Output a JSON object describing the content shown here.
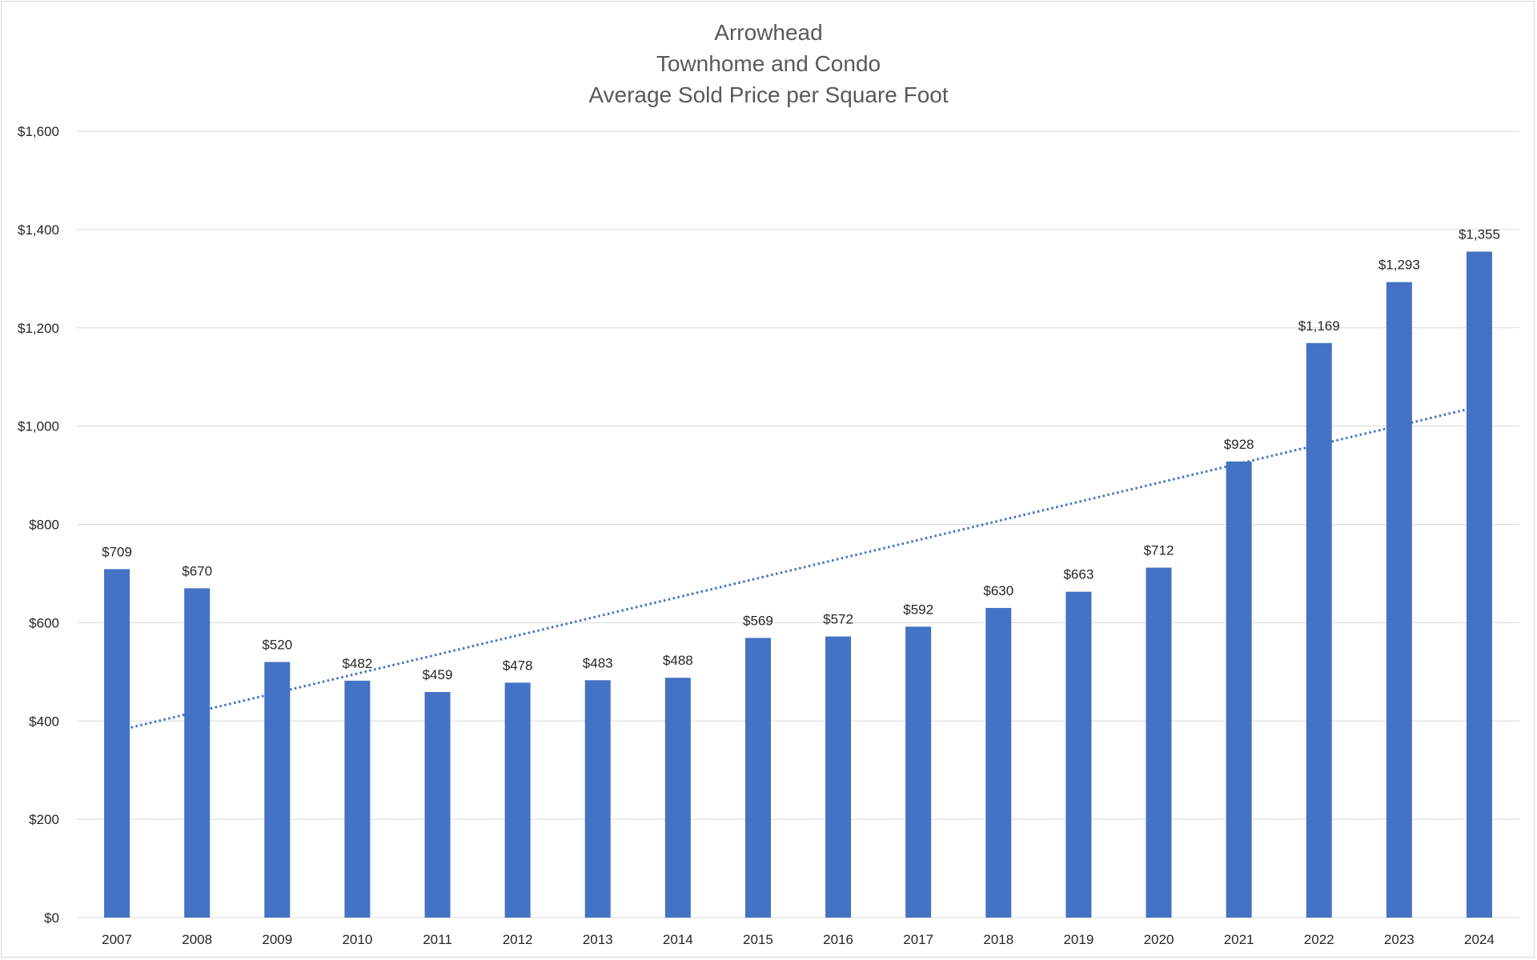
{
  "chart_data": {
    "type": "bar",
    "title": [
      "Arrowhead",
      "Townhome and Condo",
      "Average Sold Price per Square Foot"
    ],
    "categories": [
      "2007",
      "2008",
      "2009",
      "2010",
      "2011",
      "2012",
      "2013",
      "2014",
      "2015",
      "2016",
      "2017",
      "2018",
      "2019",
      "2020",
      "2021",
      "2022",
      "2023",
      "2024"
    ],
    "values": [
      709,
      670,
      520,
      482,
      459,
      478,
      483,
      488,
      569,
      572,
      592,
      630,
      663,
      712,
      928,
      1169,
      1293,
      1355
    ],
    "data_labels": [
      "$709",
      "$670",
      "$520",
      "$482",
      "$459",
      "$478",
      "$483",
      "$488",
      "$569",
      "$572",
      "$592",
      "$630",
      "$663",
      "$712",
      "$928",
      "$1,169",
      "$1,293",
      "$1,355"
    ],
    "y_ticks": [
      0,
      200,
      400,
      600,
      800,
      1000,
      1200,
      1400,
      1600
    ],
    "y_tick_labels": [
      "$0",
      "$200",
      "$400",
      "$600",
      "$800",
      "$1,000",
      "$1,200",
      "$1,400",
      "$1,600"
    ],
    "ylim": [
      0,
      1600
    ],
    "xlabel": "",
    "ylabel": "",
    "grid": true,
    "legend": "none",
    "trendline": {
      "type": "linear",
      "style": "dotted",
      "start_value": 380,
      "end_value": 1040
    },
    "colors": {
      "bar": "#4472C4",
      "trendline": "#4472C4",
      "grid": "#d9d9d9",
      "text": "#262626",
      "title": "#595959"
    }
  }
}
